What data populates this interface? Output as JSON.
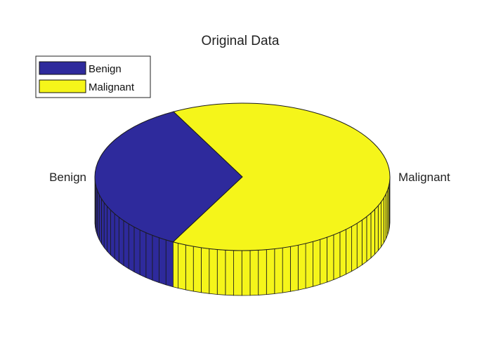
{
  "chart_data": {
    "type": "pie",
    "title": "Original Data",
    "style": "3d",
    "slices": [
      {
        "label": "Benign",
        "value": 34.5,
        "color": "#2e2a9c"
      },
      {
        "label": "Malignant",
        "value": 65.5,
        "color": "#f5f51a"
      }
    ],
    "legend": {
      "placement": "top-left",
      "entries": [
        "Benign",
        "Malignant"
      ]
    }
  }
}
